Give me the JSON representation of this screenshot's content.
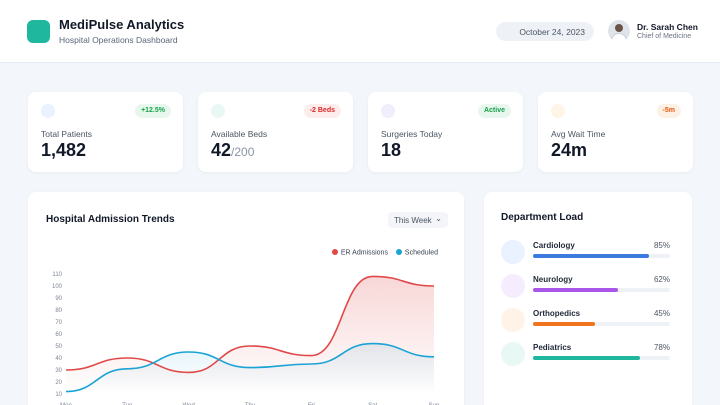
{
  "header": {
    "app_title": "MediPulse Analytics",
    "app_subtitle": "Hospital Operations Dashboard",
    "date": "October 24, 2023",
    "user_name": "Dr. Sarah Chen",
    "user_role": "Chief of Medicine",
    "brand_color": "#1fb79e"
  },
  "stats": [
    {
      "label": "Total Patients",
      "value": "1,482",
      "suffix": "",
      "badge": "+12.5%",
      "badge_color": "#16a34a",
      "badge_bg": "#e8f7ee",
      "icon": "users-icon",
      "icon_bg": "#eaf2ff"
    },
    {
      "label": "Available Beds",
      "value": "42",
      "suffix": "/200",
      "badge": "-2 Beds",
      "badge_color": "#dc2626",
      "badge_bg": "#fdecec",
      "icon": "bed-icon",
      "icon_bg": "#e9f8f4"
    },
    {
      "label": "Surgeries Today",
      "value": "18",
      "suffix": "",
      "badge": "Active",
      "badge_color": "#16a34a",
      "badge_bg": "#e8f7ee",
      "icon": "scalpel-icon",
      "icon_bg": "#f1eefc"
    },
    {
      "label": "Avg Wait Time",
      "value": "24m",
      "suffix": "",
      "badge": "-5m",
      "badge_color": "#ea580c",
      "badge_bg": "#fdf1e6",
      "icon": "clock-icon",
      "icon_bg": "#fff5e6"
    }
  ],
  "chart_card": {
    "title": "Hospital Admission Trends",
    "range": "This Week"
  },
  "chart_data": {
    "type": "line",
    "x": [
      "Mon",
      "Tue",
      "Wed",
      "Thu",
      "Fri",
      "Sat",
      "Sun"
    ],
    "ylim": [
      10,
      110
    ],
    "yticks": [
      10,
      20,
      30,
      40,
      50,
      60,
      70,
      80,
      90,
      100,
      110
    ],
    "series": [
      {
        "name": "ER Admissions",
        "color": "#e04848",
        "values": [
          30,
          40,
          28,
          50,
          42,
          108,
          100
        ]
      },
      {
        "name": "Scheduled",
        "color": "#1aa3d6",
        "values": [
          12,
          31,
          45,
          32,
          35,
          52,
          41
        ]
      }
    ],
    "legend": "top-right",
    "grid": false
  },
  "departments": {
    "title": "Department Load",
    "items": [
      {
        "name": "Cardiology",
        "pct": "85%",
        "value": 0.85,
        "color": "#3b7be0",
        "icon_bg": "#eaf2ff"
      },
      {
        "name": "Neurology",
        "pct": "62%",
        "value": 0.62,
        "color": "#a855e8",
        "icon_bg": "#f5edfd"
      },
      {
        "name": "Orthopedics",
        "pct": "45%",
        "value": 0.45,
        "color": "#f0741e",
        "icon_bg": "#fff3e8"
      },
      {
        "name": "Pediatrics",
        "pct": "78%",
        "value": 0.78,
        "color": "#1fb79e",
        "icon_bg": "#e8f8f4"
      }
    ]
  }
}
